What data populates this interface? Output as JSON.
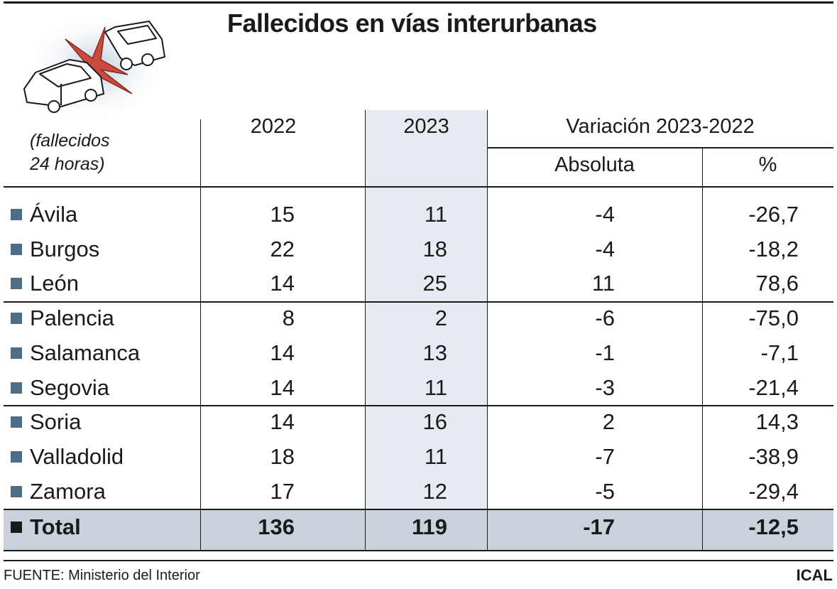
{
  "title": "Fallecidos en vías interurbanas",
  "unit_note": [
    "(fallecidos",
    "24 horas)"
  ],
  "headers": {
    "y2022": "2022",
    "y2023": "2023",
    "variation": "Variación 2023-2022",
    "absolute": "Absoluta",
    "percent": "%"
  },
  "rows": [
    {
      "province": "Ávila",
      "v2022": "15",
      "v2023": "11",
      "abs": "-4",
      "pct": "-26,7"
    },
    {
      "province": "Burgos",
      "v2022": "22",
      "v2023": "18",
      "abs": "-4",
      "pct": "-18,2"
    },
    {
      "province": "León",
      "v2022": "14",
      "v2023": "25",
      "abs": "11",
      "pct": "78,6"
    },
    {
      "province": "Palencia",
      "v2022": "8",
      "v2023": "2",
      "abs": "-6",
      "pct": "-75,0"
    },
    {
      "province": "Salamanca",
      "v2022": "14",
      "v2023": "13",
      "abs": "-1",
      "pct": "-7,1"
    },
    {
      "province": "Segovia",
      "v2022": "14",
      "v2023": "11",
      "abs": "-3",
      "pct": "-21,4"
    },
    {
      "province": "Soria",
      "v2022": "14",
      "v2023": "16",
      "abs": "2",
      "pct": "14,3"
    },
    {
      "province": "Valladolid",
      "v2022": "18",
      "v2023": "11",
      "abs": "-7",
      "pct": "-38,9"
    },
    {
      "province": "Zamora",
      "v2022": "17",
      "v2023": "12",
      "abs": "-5",
      "pct": "-29,4"
    }
  ],
  "total": {
    "label": "Total",
    "v2022": "136",
    "v2023": "119",
    "abs": "-17",
    "pct": "-12,5"
  },
  "source": "FUENTE: Ministerio del Interior",
  "brand": "ICAL",
  "colors": {
    "marker": "#4f6c87",
    "total_marker": "#1a1a1a",
    "highlight_column": "#e6ebf1",
    "total_row": "#c9d1da",
    "star": "#c94a3e"
  },
  "icons": [
    "car-crash-illustration-icon"
  ],
  "chart_data": {
    "type": "table",
    "title": "Fallecidos en vías interurbanas",
    "columns": [
      "2022",
      "2023",
      "Absoluta",
      "%"
    ],
    "categories": [
      "Ávila",
      "Burgos",
      "León",
      "Palencia",
      "Salamanca",
      "Segovia",
      "Soria",
      "Valladolid",
      "Zamora",
      "Total"
    ],
    "series": [
      {
        "name": "2022",
        "values": [
          15,
          22,
          14,
          8,
          14,
          14,
          14,
          18,
          17,
          136
        ]
      },
      {
        "name": "2023",
        "values": [
          11,
          18,
          25,
          2,
          13,
          11,
          16,
          11,
          12,
          119
        ]
      },
      {
        "name": "Absoluta",
        "values": [
          -4,
          -4,
          11,
          -6,
          -1,
          -3,
          2,
          -7,
          -5,
          -17
        ]
      },
      {
        "name": "%",
        "values": [
          -26.7,
          -18.2,
          78.6,
          -75.0,
          -7.1,
          -21.4,
          14.3,
          -38.9,
          -29.4,
          -12.5
        ]
      }
    ]
  }
}
